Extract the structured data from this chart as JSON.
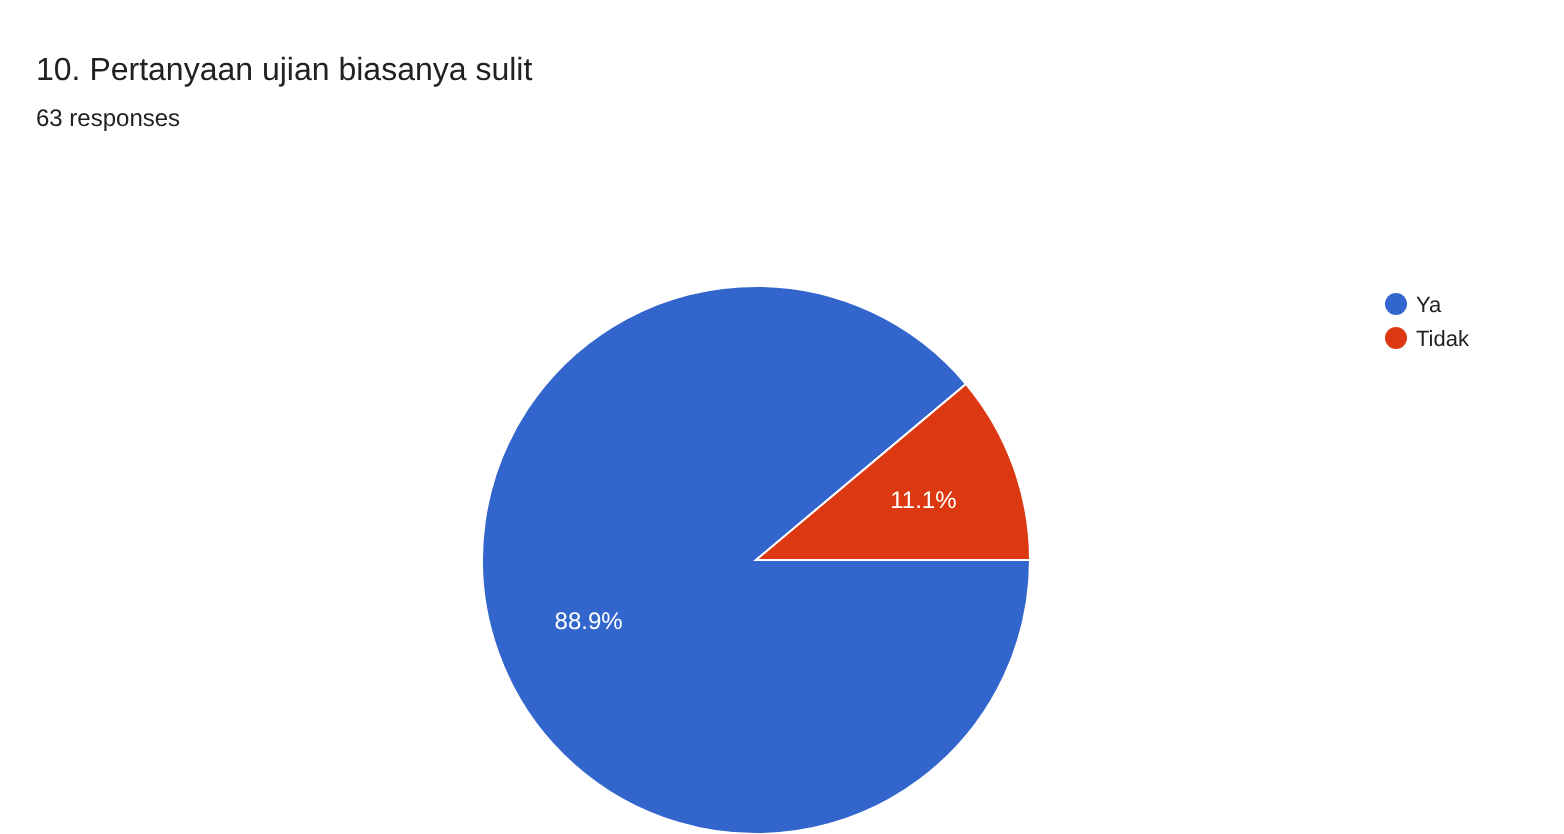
{
  "chart_data": {
    "type": "pie",
    "title": "10. Pertanyaan ujian biasanya sulit",
    "subtitle": "63 responses",
    "categories": [
      "Ya",
      "Tidak"
    ],
    "values": [
      88.9,
      11.1
    ],
    "colors": [
      "#3366cc",
      "#dc3912"
    ],
    "value_labels": [
      "88.9%",
      "11.1%"
    ],
    "legend": "right"
  }
}
